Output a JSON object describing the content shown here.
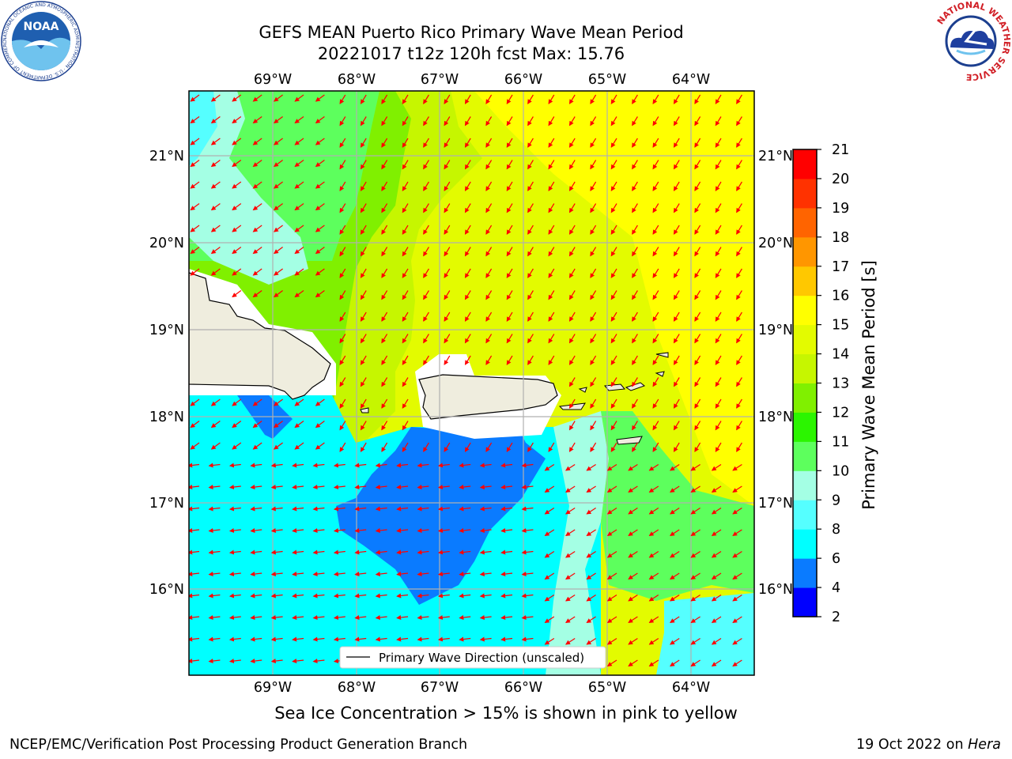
{
  "title_line1": "GEFS MEAN Puerto Rico Primary Wave Mean Period",
  "title_line2": "20221017 t12z 120h fcst   Max: 15.76",
  "lon_labels": [
    "69°W",
    "68°W",
    "67°W",
    "66°W",
    "65°W",
    "64°W"
  ],
  "lat_labels": [
    "21°N",
    "20°N",
    "19°N",
    "18°N",
    "17°N",
    "16°N"
  ],
  "legend_label": "Primary Wave Direction (unscaled)",
  "colorbar": {
    "label": "Primary Wave Mean Period [s]",
    "ticks": [
      "2",
      "4",
      "6",
      "8",
      "9",
      "10",
      "11",
      "12",
      "13",
      "14",
      "15",
      "16",
      "17",
      "18",
      "19",
      "20",
      "21"
    ],
    "colors": [
      "#0000ff",
      "#0a7bff",
      "#00ffff",
      "#55ffff",
      "#a4ffe4",
      "#5dff5d",
      "#2bf500",
      "#80f000",
      "#c6f600",
      "#e3fb00",
      "#ffff00",
      "#ffc800",
      "#ff9600",
      "#ff6400",
      "#ff3200",
      "#ff0000"
    ]
  },
  "note": "Sea Ice Concentration > 15% is shown in pink to yellow",
  "footer_left": "NCEP/EMC/Verification Post Processing Product Generation Branch",
  "footer_date": "19 Oct 2022 on",
  "footer_machine": "Hera",
  "noaa_logo": {
    "text": "NOAA",
    "ring_text": "NATIONAL OCEANIC AND ATMOSPHERIC ADMINISTRATION · U.S. DEPARTMENT OF COMMERCE ·"
  },
  "nws_logo": {
    "text": "NATIONAL WEATHER SERVICE"
  },
  "colors": {
    "land": "#efedde",
    "arrow": "#ff0000",
    "grid": "#b0b0b0"
  }
}
